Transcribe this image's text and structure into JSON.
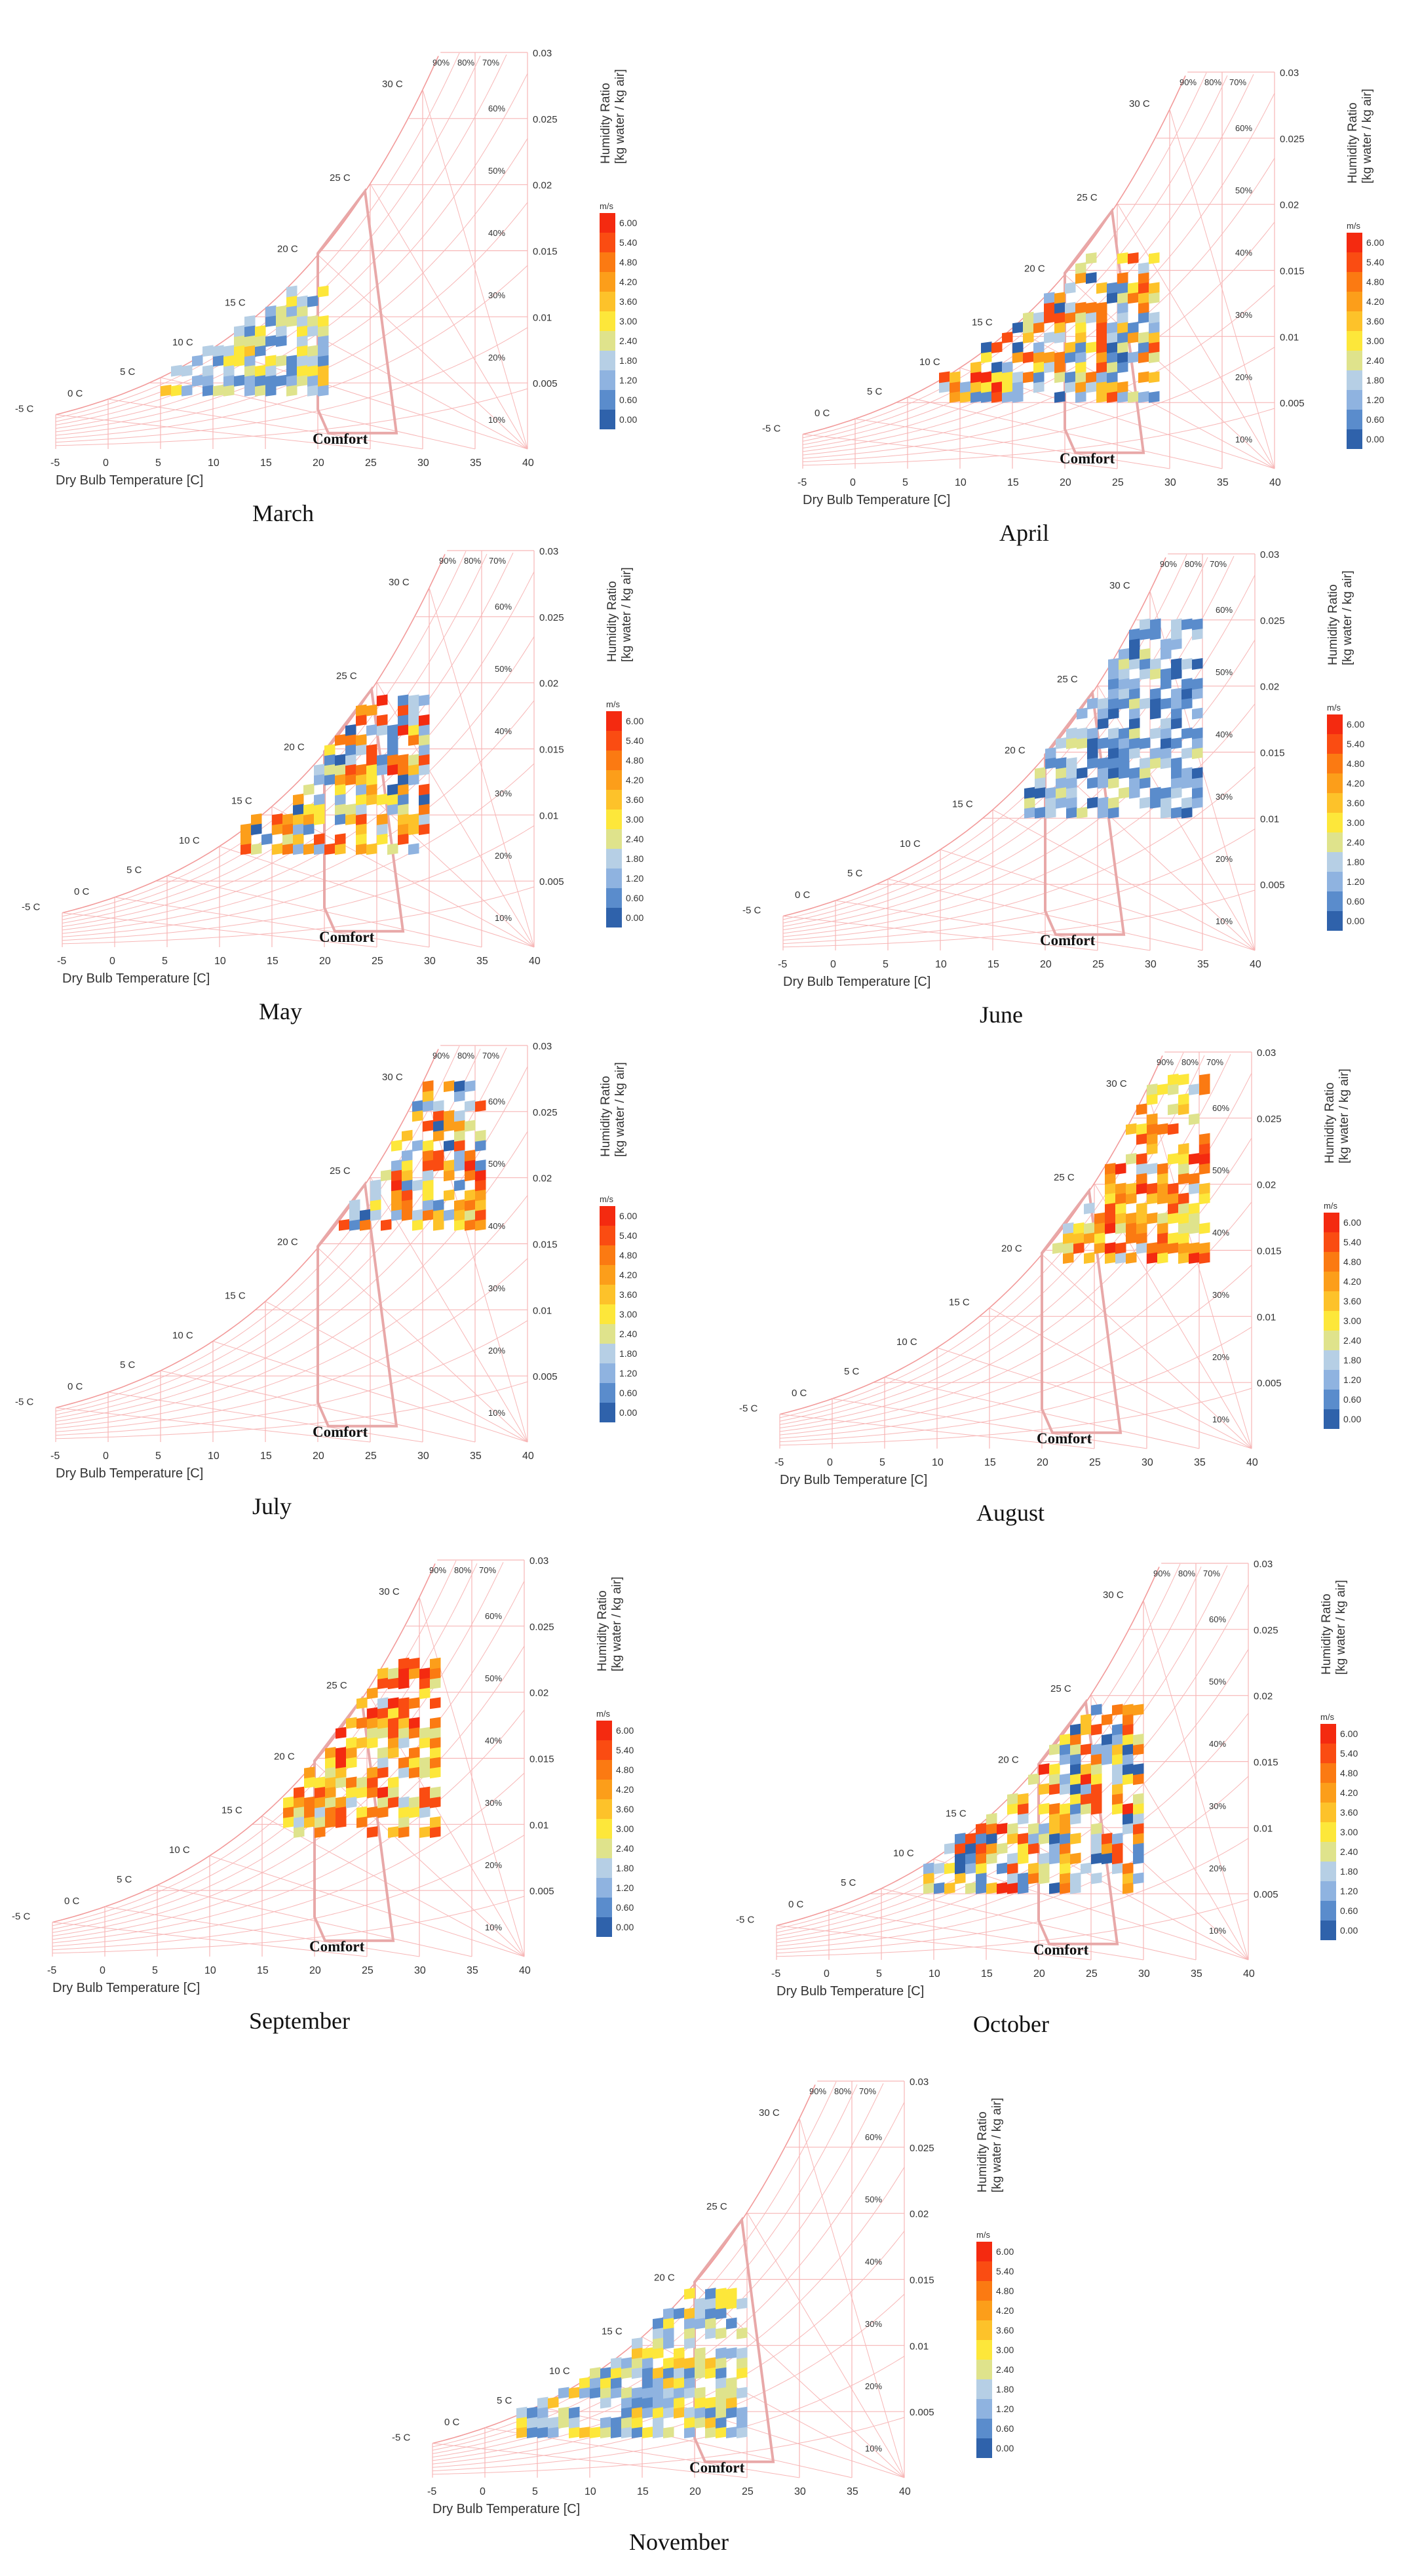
{
  "common": {
    "x_axis_label": "Dry Bulb Temperature [C]",
    "y_axis_label_line1": "Humidity Ratio",
    "y_axis_label_line2": "[kg water / kg air]",
    "x_ticks": [
      "-5",
      "0",
      "5",
      "10",
      "15",
      "20",
      "25",
      "30",
      "35",
      "40"
    ],
    "y_ticks": [
      "0.005",
      "0.01",
      "0.015",
      "0.02",
      "0.025",
      "0.03"
    ],
    "wet_bulb_labels": [
      "-5 C",
      "0 C",
      "5 C",
      "10 C",
      "15 C",
      "20 C",
      "25 C",
      "30 C"
    ],
    "rh_labels": [
      "90%",
      "80%",
      "70%",
      "60%",
      "50%",
      "40%",
      "30%",
      "20%",
      "10%"
    ],
    "comfort_label": "Comfort",
    "legend_unit": "m/s",
    "legend_values": [
      "6.00",
      "5.40",
      "4.80",
      "4.20",
      "3.60",
      "3.00",
      "2.40",
      "1.80",
      "1.20",
      "0.60",
      "0.00"
    ],
    "legend_colors": [
      "#f42a10",
      "#fa4c12",
      "#fb7a12",
      "#fc9e1a",
      "#fdc22a",
      "#fde73a",
      "#dfe38c",
      "#b6cfe5",
      "#8fb3e0",
      "#5a8ccc",
      "#2f62ab"
    ],
    "grid_color": "#f7b6b6",
    "comfort_color": "#e8a8a8"
  },
  "chart_data": [
    {
      "type": "heatmap",
      "title": "March",
      "xlabel": "Dry Bulb Temperature [C]",
      "ylabel": "Humidity Ratio [kg water / kg air]",
      "xlim": [
        -5,
        40
      ],
      "ylim": [
        0,
        0.03
      ],
      "value_unit": "m/s",
      "value_range": [
        0,
        6
      ],
      "cells_x_range": [
        5,
        21
      ],
      "cells_y_range": [
        0.004,
        0.012
      ],
      "dominant_speed": "low to medium (0.6-3.6 m/s)"
    },
    {
      "type": "heatmap",
      "title": "April",
      "xlabel": "Dry Bulb Temperature [C]",
      "ylabel": "Humidity Ratio [kg water / kg air]",
      "xlim": [
        -5,
        40
      ],
      "ylim": [
        0,
        0.03
      ],
      "value_unit": "m/s",
      "value_range": [
        0,
        6
      ],
      "cells_x_range": [
        8,
        29
      ],
      "cells_y_range": [
        0.005,
        0.016
      ],
      "dominant_speed": "mixed (0.6-6.0 m/s)"
    },
    {
      "type": "heatmap",
      "title": "May",
      "xlabel": "Dry Bulb Temperature [C]",
      "ylabel": "Humidity Ratio [kg water / kg air]",
      "xlim": [
        -5,
        40
      ],
      "ylim": [
        0,
        0.03
      ],
      "value_unit": "m/s",
      "value_range": [
        0,
        6
      ],
      "cells_x_range": [
        12,
        30
      ],
      "cells_y_range": [
        0.007,
        0.019
      ],
      "dominant_speed": "mixed (0.6-5.4 m/s)"
    },
    {
      "type": "heatmap",
      "title": "June",
      "xlabel": "Dry Bulb Temperature [C]",
      "ylabel": "Humidity Ratio [kg water / kg air]",
      "xlim": [
        -5,
        40
      ],
      "ylim": [
        0,
        0.03
      ],
      "value_unit": "m/s",
      "value_range": [
        0,
        6
      ],
      "cells_x_range": [
        18,
        35
      ],
      "cells_y_range": [
        0.01,
        0.025
      ],
      "dominant_speed": "low (0.0-2.4 m/s)"
    },
    {
      "type": "heatmap",
      "title": "July",
      "xlabel": "Dry Bulb Temperature [C]",
      "ylabel": "Humidity Ratio [kg water / kg air]",
      "xlim": [
        -5,
        40
      ],
      "ylim": [
        0,
        0.03
      ],
      "value_unit": "m/s",
      "value_range": [
        0,
        6
      ],
      "cells_x_range": [
        21,
        36
      ],
      "cells_y_range": [
        0.016,
        0.027
      ],
      "dominant_speed": "mixed (1.2-6.0 m/s)"
    },
    {
      "type": "heatmap",
      "title": "August",
      "xlabel": "Dry Bulb Temperature [C]",
      "ylabel": "Humidity Ratio [kg water / kg air]",
      "xlim": [
        -5,
        40
      ],
      "ylim": [
        0,
        0.03
      ],
      "value_unit": "m/s",
      "value_range": [
        0,
        6
      ],
      "cells_x_range": [
        21,
        36
      ],
      "cells_y_range": [
        0.014,
        0.028
      ],
      "dominant_speed": "medium to high (2.4-6.0 m/s)"
    },
    {
      "type": "heatmap",
      "title": "September",
      "xlabel": "Dry Bulb Temperature [C]",
      "ylabel": "Humidity Ratio [kg water / kg air]",
      "xlim": [
        -5,
        40
      ],
      "ylim": [
        0,
        0.03
      ],
      "value_unit": "m/s",
      "value_range": [
        0,
        6
      ],
      "cells_x_range": [
        17,
        32
      ],
      "cells_y_range": [
        0.009,
        0.022
      ],
      "dominant_speed": "medium to high (1.8-6.0 m/s)"
    },
    {
      "type": "heatmap",
      "title": "October",
      "xlabel": "Dry Bulb Temperature [C]",
      "ylabel": "Humidity Ratio [kg water / kg air]",
      "xlim": [
        -5,
        40
      ],
      "ylim": [
        0,
        0.03
      ],
      "value_unit": "m/s",
      "value_range": [
        0,
        6
      ],
      "cells_x_range": [
        9,
        30
      ],
      "cells_y_range": [
        0.005,
        0.019
      ],
      "dominant_speed": "mixed (0.0-6.0 m/s)"
    },
    {
      "type": "heatmap",
      "title": "November",
      "xlabel": "Dry Bulb Temperature [C]",
      "ylabel": "Humidity Ratio [kg water / kg air]",
      "xlim": [
        -5,
        40
      ],
      "ylim": [
        0,
        0.03
      ],
      "value_unit": "m/s",
      "value_range": [
        0,
        6
      ],
      "cells_x_range": [
        3,
        25
      ],
      "cells_y_range": [
        0.003,
        0.014
      ],
      "dominant_speed": "low to medium (0.0-3.6 m/s)"
    }
  ]
}
